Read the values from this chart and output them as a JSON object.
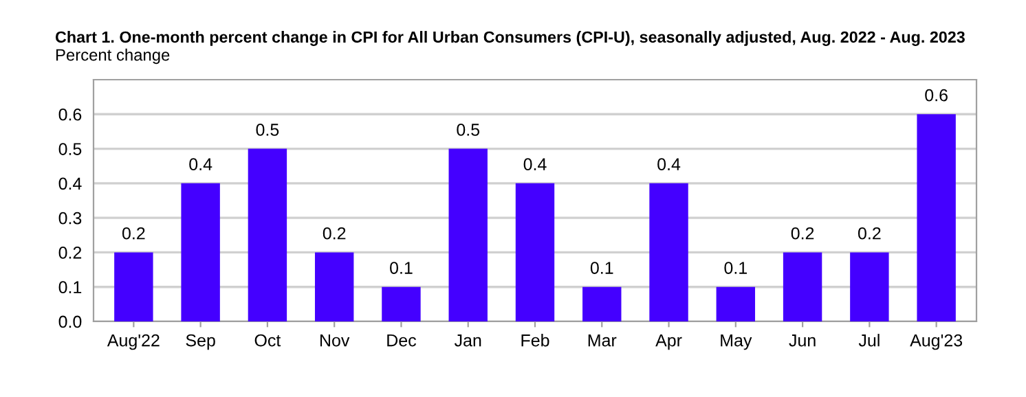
{
  "chart_data": {
    "type": "bar",
    "title": "Chart 1. One-month percent change in CPI for All Urban Consumers (CPI-U), seasonally adjusted, Aug. 2022 - Aug. 2023",
    "ylabel": "Percent change",
    "categories": [
      "Aug'22",
      "Sep",
      "Oct",
      "Nov",
      "Dec",
      "Jan",
      "Feb",
      "Mar",
      "Apr",
      "May",
      "Jun",
      "Jul",
      "Aug'23"
    ],
    "values": [
      0.2,
      0.4,
      0.5,
      0.2,
      0.1,
      0.5,
      0.4,
      0.1,
      0.4,
      0.1,
      0.2,
      0.2,
      0.6
    ],
    "color": "#4400ff",
    "ylim": [
      0,
      0.7
    ],
    "yticks": [
      {
        "value": 0,
        "label": "0.0"
      },
      0.1,
      0.2,
      0.3,
      0.4,
      0.5,
      0.6
    ],
    "grid": "y",
    "data_labels": true
  }
}
